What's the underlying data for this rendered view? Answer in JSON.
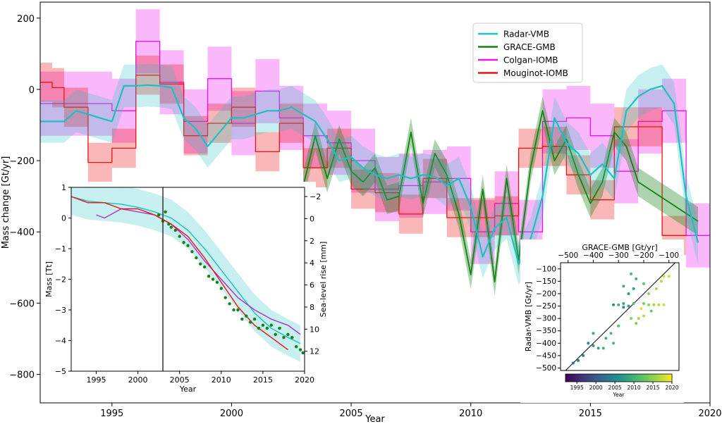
{
  "chart_data": [
    {
      "type": "line",
      "xlabel": "Year",
      "ylabel": "Mass change [Gt/yr]",
      "xlim": [
        1992,
        2020
      ],
      "ylim": [
        -880,
        245
      ],
      "x_ticks": [
        1995,
        2000,
        2005,
        2010,
        2015,
        2020
      ],
      "y_ticks": [
        200,
        0,
        -200,
        -400,
        -600,
        -800
      ],
      "grid": false,
      "legend_position": "top-right",
      "colors": {
        "Radar-VMB": "#1fbfbf",
        "GRACE-GMB": "#158215",
        "Colgan-IOMB": "#ee11ee",
        "Mouginot-IOMB": "#ee1111"
      },
      "series": [
        {
          "name": "Radar-VMB",
          "style": "line-with-band",
          "x": [
            1992,
            1993,
            1993.5,
            1994,
            1994.5,
            1995,
            1995.5,
            1996,
            1996.5,
            1997,
            1997.5,
            1998,
            1998.5,
            1999,
            1999.5,
            2000,
            2000.5,
            2001,
            2001.5,
            2002,
            2002.5,
            2003,
            2003.5,
            2004,
            2004.5,
            2005,
            2005.5,
            2006,
            2006.5,
            2007,
            2007.5,
            2008,
            2008.5,
            2009,
            2009.5,
            2010,
            2010.5,
            2011,
            2011.5,
            2012,
            2012.5,
            2013,
            2013.5,
            2014,
            2014.5,
            2015,
            2015.5,
            2016,
            2016.5,
            2017,
            2017.5,
            2018,
            2018.5,
            2019,
            2019.5
          ],
          "values": [
            -90,
            -90,
            -60,
            -70,
            -80,
            -90,
            10,
            10,
            12,
            10,
            5,
            -80,
            -110,
            -160,
            -120,
            -80,
            -80,
            -70,
            -60,
            -60,
            -50,
            -70,
            -90,
            -140,
            -200,
            -190,
            -220,
            -240,
            -250,
            -240,
            -250,
            -240,
            -245,
            -270,
            -250,
            -330,
            -470,
            -390,
            -360,
            -490,
            -420,
            -300,
            -80,
            -150,
            -180,
            -240,
            -210,
            -250,
            -60,
            -20,
            0,
            10,
            -40,
            -300,
            -430
          ],
          "band": 60
        },
        {
          "name": "GRACE-GMB",
          "x": [
            2003,
            2003.5,
            2004,
            2004.5,
            2005,
            2005.5,
            2006,
            2006.5,
            2007,
            2007.5,
            2008,
            2008.5,
            2009,
            2009.5,
            2010,
            2010.5,
            2011,
            2011.5,
            2012,
            2012.5,
            2013,
            2013.5,
            2014,
            2014.5,
            2015,
            2015.5,
            2016,
            2016.5,
            2017,
            2019.5
          ],
          "values": [
            -270,
            -130,
            -250,
            -140,
            -230,
            -260,
            -220,
            -310,
            -300,
            -120,
            -320,
            -180,
            -240,
            -350,
            -520,
            -280,
            -540,
            -250,
            -480,
            -220,
            -60,
            -200,
            -140,
            -240,
            -320,
            -260,
            -120,
            -160,
            -260,
            -370
          ],
          "band": 40
        },
        {
          "name": "Colgan-IOMB",
          "style": "step-with-band",
          "x": [
            1992,
            1995,
            1996,
            1997,
            1998,
            1999,
            2000,
            2001,
            2002,
            2003,
            2004,
            2005,
            2006,
            2007,
            2008,
            2009,
            2010,
            2011,
            2012,
            2013,
            2014,
            2015,
            2016,
            2017,
            2018,
            2019,
            2020
          ],
          "values": [
            -40,
            -60,
            135,
            20,
            -90,
            30,
            -95,
            -5,
            -80,
            -130,
            -150,
            -200,
            -280,
            -270,
            -260,
            -250,
            -400,
            -320,
            -400,
            -90,
            -80,
            -130,
            -230,
            -90,
            -60,
            -410,
            -410
          ],
          "band": 90
        },
        {
          "name": "Mouginot-IOMB",
          "style": "step-with-band",
          "x": [
            1992,
            1992.5,
            1993,
            1994,
            1995,
            1996,
            1997,
            1998,
            1999,
            2000,
            2001,
            2002,
            2003,
            2004,
            2005,
            2006,
            2007,
            2008,
            2009,
            2010,
            2011,
            2012,
            2013,
            2014,
            2015,
            2016,
            2017,
            2018,
            2019
          ],
          "values": [
            20,
            5,
            -50,
            -205,
            -165,
            40,
            15,
            -130,
            -95,
            -50,
            -175,
            -95,
            -220,
            -165,
            -280,
            -290,
            -350,
            -250,
            -360,
            -360,
            -355,
            -165,
            -160,
            -240,
            -310,
            -105,
            -105,
            -410,
            -410
          ],
          "band": 55
        }
      ]
    },
    {
      "type": "line",
      "xlabel": "Year",
      "ylabel": "Mass [Tt]",
      "y2label": "Sea-level rise [mm]",
      "xlim": [
        1992,
        2020
      ],
      "ylim": [
        -5,
        1
      ],
      "x_ticks": [
        1995,
        2000,
        2005,
        2010,
        2015,
        2020
      ],
      "y_ticks": [
        1,
        0,
        -1,
        -2,
        -3,
        -4,
        -5
      ],
      "y2_ticks": [
        -2,
        0,
        2,
        4,
        6,
        8,
        10,
        12
      ],
      "vertical_line_x": 2003,
      "series": [
        {
          "name": "Radar-VMB",
          "x": [
            1992,
            1994,
            1996,
            1998,
            2000,
            2002,
            2004,
            2006,
            2008,
            2010,
            2012,
            2014,
            2016,
            2018,
            2019.5
          ],
          "values": [
            0.7,
            0.55,
            0.5,
            0.45,
            0.35,
            0.2,
            0,
            -0.4,
            -1.0,
            -1.7,
            -2.4,
            -3.1,
            -3.6,
            -3.9,
            -4.1
          ],
          "band": 0.6
        },
        {
          "name": "Colgan-IOMB",
          "x": [
            1995,
            1996,
            1998,
            2000,
            2002,
            2004,
            2006,
            2008,
            2010,
            2012,
            2014,
            2016,
            2018,
            2019.5
          ],
          "values": [
            0.1,
            0.0,
            0.3,
            0.2,
            0.1,
            -0.2,
            -0.7,
            -1.4,
            -2.0,
            -2.6,
            -3.0,
            -3.3,
            -3.5,
            -3.8
          ]
        },
        {
          "name": "Mouginot-IOMB",
          "x": [
            1992,
            1994,
            1996,
            1998,
            2000,
            2002,
            2004,
            2006,
            2008,
            2010,
            2012,
            2014,
            2016,
            2018
          ],
          "values": [
            0.7,
            0.5,
            0.5,
            0.3,
            0.3,
            0.1,
            -0.2,
            -0.6,
            -1.3,
            -2.1,
            -2.9,
            -3.5,
            -3.9,
            -4.3
          ]
        },
        {
          "name": "GRACE-GMB",
          "style": "dots",
          "x": [
            2002.5,
            2003,
            2003.3,
            2003.7,
            2004,
            2004.5,
            2005,
            2005.5,
            2006,
            2006.5,
            2007,
            2007.5,
            2008,
            2008.5,
            2009,
            2009.5,
            2010,
            2010.5,
            2011,
            2011.5,
            2012,
            2012.5,
            2013,
            2013.5,
            2014,
            2014.5,
            2015,
            2015.5,
            2016,
            2016.5,
            2017,
            2017.5,
            2018,
            2018.5,
            2019,
            2019.5,
            2019.8
          ],
          "values": [
            0.1,
            -0.1,
            0.2,
            -0.2,
            -0.3,
            -0.4,
            -0.6,
            -0.8,
            -0.9,
            -1.1,
            -1.3,
            -1.5,
            -1.6,
            -1.9,
            -2.0,
            -2.1,
            -2.3,
            -2.6,
            -2.8,
            -3.0,
            -3.0,
            -3.3,
            -3.2,
            -3.4,
            -3.3,
            -3.6,
            -3.5,
            -3.6,
            -3.5,
            -3.8,
            -3.6,
            -3.9,
            -3.8,
            -3.9,
            -4.2,
            -4.3,
            -4.4
          ]
        }
      ]
    },
    {
      "type": "scatter",
      "xlabel": "GRACE-GMB [Gt/yr]",
      "ylabel": "Radar-VMB [Gt/yr]",
      "xlim": [
        -530,
        -60
      ],
      "ylim": [
        -510,
        -75
      ],
      "x_ticks": [
        -500,
        -400,
        -300,
        -200,
        -100
      ],
      "y_ticks": [
        -100,
        -150,
        -200,
        -250,
        -300,
        -350,
        -400,
        -450,
        -500
      ],
      "colorbar": {
        "label": "Year",
        "ticks": [
          1995,
          2000,
          2005,
          2010,
          2015,
          2020
        ],
        "range": [
          1992,
          2020
        ],
        "colormap": "viridis"
      },
      "reference_line": "y = x",
      "points": [
        {
          "x": -480,
          "y": -480,
          "year": 2003
        },
        {
          "x": -460,
          "y": -470,
          "year": 2004
        },
        {
          "x": -440,
          "y": -450,
          "year": 2005
        },
        {
          "x": -420,
          "y": -400,
          "year": 2006
        },
        {
          "x": -400,
          "y": -410,
          "year": 2007
        },
        {
          "x": -380,
          "y": -420,
          "year": 2008
        },
        {
          "x": -400,
          "y": -360,
          "year": 2009
        },
        {
          "x": -350,
          "y": -380,
          "year": 2010
        },
        {
          "x": -330,
          "y": -360,
          "year": 2011
        },
        {
          "x": -300,
          "y": -330,
          "year": 2012
        },
        {
          "x": -320,
          "y": -400,
          "year": 2011
        },
        {
          "x": -360,
          "y": -420,
          "year": 2010
        },
        {
          "x": -250,
          "y": -300,
          "year": 2015
        },
        {
          "x": -220,
          "y": -300,
          "year": 2016
        },
        {
          "x": -200,
          "y": -290,
          "year": 2017
        },
        {
          "x": -230,
          "y": -320,
          "year": 2014
        },
        {
          "x": -260,
          "y": -250,
          "year": 2008
        },
        {
          "x": -280,
          "y": -240,
          "year": 2009
        },
        {
          "x": -300,
          "y": -245,
          "year": 2010
        },
        {
          "x": -240,
          "y": -240,
          "year": 2012
        },
        {
          "x": -200,
          "y": -240,
          "year": 2014
        },
        {
          "x": -180,
          "y": -245,
          "year": 2015
        },
        {
          "x": -160,
          "y": -245,
          "year": 2016
        },
        {
          "x": -140,
          "y": -245,
          "year": 2017
        },
        {
          "x": -120,
          "y": -245,
          "year": 2018
        },
        {
          "x": -260,
          "y": -200,
          "year": 2007
        },
        {
          "x": -240,
          "y": -180,
          "year": 2008
        },
        {
          "x": -280,
          "y": -170,
          "year": 2009
        },
        {
          "x": -230,
          "y": -140,
          "year": 2010
        },
        {
          "x": -250,
          "y": -120,
          "year": 2011
        },
        {
          "x": -200,
          "y": -160,
          "year": 2013
        },
        {
          "x": -180,
          "y": -200,
          "year": 2015
        },
        {
          "x": -150,
          "y": -180,
          "year": 2016
        },
        {
          "x": -130,
          "y": -150,
          "year": 2017
        },
        {
          "x": -120,
          "y": -130,
          "year": 2018
        },
        {
          "x": -100,
          "y": -130,
          "year": 2018
        },
        {
          "x": -280,
          "y": -255,
          "year": 2006
        },
        {
          "x": -320,
          "y": -245,
          "year": 2005
        },
        {
          "x": -210,
          "y": -260,
          "year": 2019
        },
        {
          "x": -170,
          "y": -270,
          "year": 2013
        }
      ]
    }
  ]
}
